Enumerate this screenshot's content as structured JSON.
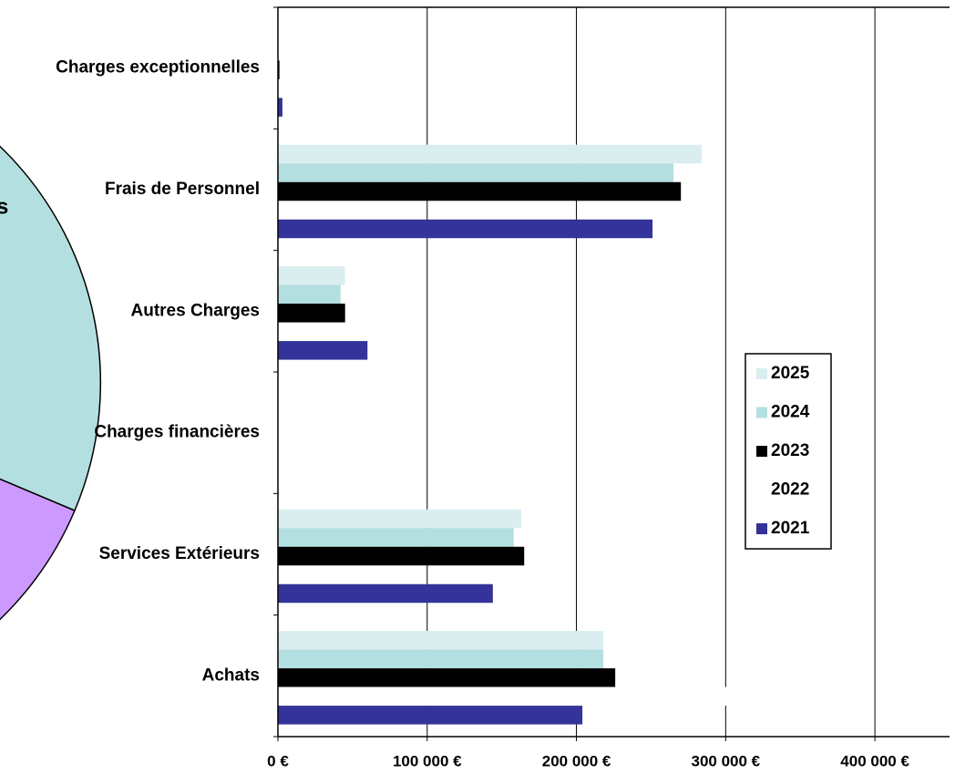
{
  "pie_fragment": "s",
  "chart_data": {
    "type": "hbar",
    "categories": [
      "Charges exceptionnelles",
      "Frais de Personnel",
      "Autres Charges",
      "Charges financières",
      "Services Extérieurs",
      "Achats"
    ],
    "series": [
      {
        "name": "2025",
        "color": "#daeef0",
        "values": [
          0,
          284000,
          45000,
          0,
          163000,
          218000
        ]
      },
      {
        "name": "2024",
        "color": "#b4dfe0",
        "values": [
          0,
          265000,
          42000,
          0,
          158000,
          218000
        ]
      },
      {
        "name": "2023",
        "color": "#000000",
        "values": [
          1000,
          270000,
          45000,
          0,
          165000,
          226000
        ]
      },
      {
        "name": "2022",
        "color": "#ffffff",
        "values": [
          0,
          0,
          0,
          0,
          0,
          302000
        ]
      },
      {
        "name": "2021",
        "color": "#333399",
        "values": [
          3000,
          251000,
          60000,
          0,
          144000,
          204000
        ]
      }
    ],
    "xlim": [
      0,
      450000
    ],
    "xticks": [
      {
        "value": 0,
        "label": "0 €"
      },
      {
        "value": 100000,
        "label": "100 000 €"
      },
      {
        "value": 200000,
        "label": "200 000 €"
      },
      {
        "value": 300000,
        "label": "300 000 €"
      },
      {
        "value": 400000,
        "label": "400 000 €"
      }
    ],
    "grid": true,
    "legend": "right"
  }
}
